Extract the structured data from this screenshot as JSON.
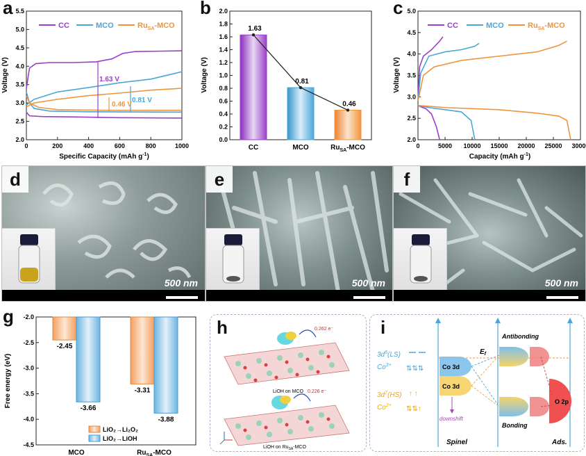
{
  "panel_labels": {
    "a": "a",
    "b": "b",
    "c": "c",
    "d": "d",
    "e": "e",
    "f": "f",
    "g": "g",
    "h": "h",
    "i": "i"
  },
  "colors": {
    "cc": "#9b3fc8",
    "mco": "#4aa6d8",
    "ru": "#f0943c"
  },
  "chart_data": [
    {
      "id": "a",
      "type": "line",
      "legend": [
        "CC",
        "MCO",
        "Ru_SA-MCO"
      ],
      "xlabel": "Specific Capacity (mAh g⁻¹)",
      "ylabel": "Voltage (V)",
      "xlim": [
        0,
        1000
      ],
      "ylim": [
        2.0,
        5.5
      ],
      "x_ticks": [
        "0",
        "200",
        "400",
        "600",
        "800",
        "1000"
      ],
      "y_ticks": [
        "2.0",
        "2.5",
        "3.0",
        "3.5",
        "4.0",
        "4.5",
        "5.0",
        "5.5"
      ],
      "series": [
        {
          "name": "CC charge",
          "x": [
            0,
            20,
            60,
            150,
            300,
            450,
            550,
            620,
            700,
            850,
            1000
          ],
          "y": [
            3.4,
            3.95,
            4.07,
            4.1,
            4.1,
            4.12,
            4.2,
            4.35,
            4.4,
            4.41,
            4.42
          ]
        },
        {
          "name": "CC discharge",
          "x": [
            0,
            20,
            100,
            300,
            600,
            1000
          ],
          "y": [
            2.75,
            2.65,
            2.63,
            2.62,
            2.6,
            2.59
          ]
        },
        {
          "name": "MCO charge",
          "x": [
            0,
            50,
            200,
            400,
            600,
            800,
            1000
          ],
          "y": [
            2.95,
            3.1,
            3.3,
            3.42,
            3.55,
            3.65,
            3.85
          ]
        },
        {
          "name": "MCO discharge",
          "x": [
            0,
            20,
            50,
            150,
            400,
            1000
          ],
          "y": [
            3.3,
            3.0,
            2.85,
            2.78,
            2.76,
            2.75
          ]
        },
        {
          "name": "Ru charge",
          "x": [
            0,
            50,
            200,
            400,
            600,
            800,
            1000
          ],
          "y": [
            2.9,
            3.0,
            3.1,
            3.2,
            3.27,
            3.35,
            3.4
          ]
        },
        {
          "name": "Ru discharge",
          "x": [
            0,
            20,
            80,
            200,
            500,
            1000
          ],
          "y": [
            3.2,
            3.0,
            2.88,
            2.82,
            2.8,
            2.8
          ]
        }
      ],
      "annotations": [
        "1.63 V",
        "0.81 V",
        "0.46 V"
      ]
    },
    {
      "id": "b",
      "type": "bar",
      "categories": [
        "CC",
        "MCO",
        "Ru_SA-MCO"
      ],
      "values": [
        1.63,
        0.81,
        0.46
      ],
      "value_labels": [
        "1.63",
        "0.81",
        "0.46"
      ],
      "ylabel": "Voltage (V)",
      "ylim": [
        0,
        2.0
      ],
      "y_ticks": [
        "0.0",
        "0.2",
        "0.4",
        "0.6",
        "0.8",
        "1.0",
        "1.2",
        "1.4",
        "1.6",
        "1.8",
        "2.0"
      ]
    },
    {
      "id": "c",
      "type": "line",
      "legend": [
        "CC",
        "MCO",
        "Ru_SA-MCO"
      ],
      "xlabel": "Capacity (mAh g⁻¹)",
      "ylabel": "Voltage (V)",
      "xlim": [
        0,
        30000
      ],
      "ylim": [
        2.0,
        5.0
      ],
      "x_ticks": [
        "0",
        "5000",
        "10000",
        "15000",
        "20000",
        "25000",
        "30000"
      ],
      "y_ticks": [
        "2.0",
        "2.5",
        "3.0",
        "3.5",
        "4.0",
        "4.5",
        "5.0"
      ],
      "series": [
        {
          "name": "CC charge",
          "x": [
            0,
            300,
            1000,
            2500,
            4000,
            4600
          ],
          "y": [
            2.9,
            3.7,
            3.95,
            4.1,
            4.3,
            4.4
          ]
        },
        {
          "name": "CC discharge",
          "x": [
            0,
            500,
            1500,
            2500,
            3400,
            4000
          ],
          "y": [
            2.8,
            2.77,
            2.72,
            2.6,
            2.3,
            2.0
          ]
        },
        {
          "name": "MCO charge",
          "x": [
            0,
            500,
            2000,
            5000,
            8000,
            10500,
            11300
          ],
          "y": [
            2.9,
            3.55,
            3.95,
            4.05,
            4.1,
            4.18,
            4.25
          ]
        },
        {
          "name": "MCO discharge",
          "x": [
            0,
            2000,
            5000,
            8000,
            9800,
            10500
          ],
          "y": [
            2.8,
            2.75,
            2.7,
            2.65,
            2.45,
            2.0
          ]
        },
        {
          "name": "Ru charge",
          "x": [
            0,
            1000,
            3000,
            8000,
            15000,
            22000,
            26000,
            27500
          ],
          "y": [
            2.9,
            3.5,
            3.7,
            3.85,
            3.95,
            4.05,
            4.2,
            4.3
          ]
        },
        {
          "name": "Ru discharge",
          "x": [
            0,
            5000,
            15000,
            22000,
            26000,
            27500,
            28200
          ],
          "y": [
            2.8,
            2.75,
            2.7,
            2.62,
            2.55,
            2.45,
            2.0
          ]
        }
      ]
    },
    {
      "id": "g",
      "type": "bar",
      "categories": [
        "MCO",
        "Ru_SA-MCO"
      ],
      "series": [
        {
          "name": "LiO₂→Li₂O₂",
          "values": [
            -2.45,
            -3.31
          ]
        },
        {
          "name": "LiO₂→LiOH",
          "values": [
            -3.66,
            -3.88
          ]
        }
      ],
      "value_labels": [
        "-2.45",
        "-3.66",
        "-3.31",
        "-3.88"
      ],
      "ylabel": "Free energy (eV)",
      "ylim": [
        -4.5,
        -2.0
      ],
      "y_ticks": [
        "-2.0",
        "-2.5",
        "-3.0",
        "-3.5",
        "-4.0",
        "-4.5"
      ]
    }
  ],
  "legend_a": {
    "cc": "CC",
    "mco": "MCO",
    "ru_main": "Ru",
    "ru_sub": "SA",
    "ru_tail": "-MCO"
  },
  "axis": {
    "ylabel_voltage": "Voltage (V)",
    "xlabel_a": "Specific Capacity (mAh g",
    "xlabel_c": "Capacity (mAh g",
    "unit_sup": "-1",
    ")": ")",
    "ylabel_g": "Free energy (eV)"
  },
  "sem": {
    "scale": "500 nm"
  },
  "h": {
    "cap1": "LiOH on MCO",
    "cap2": "LiOH on Ru",
    "cap2_sub": "SA",
    "cap2_tail": "-MCO",
    "charge1": "0.262 e⁻",
    "charge2": "0.226 e⁻"
  },
  "i": {
    "ls_pre": "3d",
    "ls_sup": "6",
    "ls_tail": "(LS)",
    "co3": "Co",
    "co3_sup": "3+",
    "hs_pre": "3d",
    "hs_sup": "7",
    "hs_tail": "(HS)",
    "co2": "Co",
    "co2_sup": "2+",
    "co3d": "Co 3d",
    "antibonding": "Antibonding",
    "bonding": "Bonding",
    "ef": "E",
    "ef_sub": "f",
    "o2p": "O 2p",
    "downshift": "downshift",
    "spinel": "Spinel",
    "ads": "Ads."
  }
}
